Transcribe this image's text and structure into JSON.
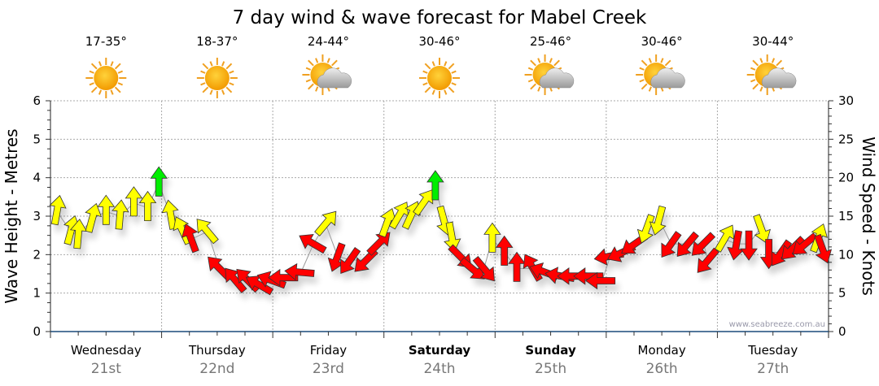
{
  "chart_data": {
    "type": "scatter",
    "title": "7 day wind & wave forecast for Mabel Creek",
    "ylabel_left": "Wave Height - Metres",
    "ylabel_right": "Wind Speed - Knots",
    "ylim_left": [
      0,
      6
    ],
    "ylim_right": [
      0,
      30
    ],
    "yticks_left": [
      "0",
      "1",
      "2",
      "3",
      "4",
      "5",
      "6"
    ],
    "yticks_right": [
      "0",
      "5",
      "10",
      "15",
      "20",
      "25",
      "30"
    ],
    "grid": true,
    "watermark": "www.seabreeze.com.au",
    "days": [
      {
        "name": "Wednesday",
        "date": "21st",
        "temp": "17-35°",
        "icon": "sun",
        "bold": false
      },
      {
        "name": "Thursday",
        "date": "22nd",
        "temp": "18-37°",
        "icon": "sun",
        "bold": false
      },
      {
        "name": "Friday",
        "date": "23rd",
        "temp": "24-44°",
        "icon": "partly-cloudy",
        "bold": false
      },
      {
        "name": "Saturday",
        "date": "24th",
        "temp": "30-46°",
        "icon": "sun",
        "bold": true
      },
      {
        "name": "Sunday",
        "date": "25th",
        "temp": "25-46°",
        "icon": "partly-cloudy",
        "bold": true
      },
      {
        "name": "Monday",
        "date": "26th",
        "temp": "30-46°",
        "icon": "partly-cloudy",
        "bold": false
      },
      {
        "name": "Tuesday",
        "date": "27th",
        "temp": "30-44°",
        "icon": "partly-cloudy",
        "bold": false
      }
    ],
    "colors": {
      "y": "#ffff00",
      "r": "#ff0000",
      "g": "#00ee00"
    },
    "wind_fields": [
      "hour",
      "knots",
      "pointing_deg",
      "color"
    ],
    "wind": [
      [
        1.4,
        15.6,
        10,
        "y"
      ],
      [
        4.4,
        13,
        15,
        "y"
      ],
      [
        6,
        12.5,
        5,
        "y"
      ],
      [
        9,
        14.6,
        15,
        "y"
      ],
      [
        12,
        15.6,
        0,
        "y"
      ],
      [
        15,
        15,
        5,
        "y"
      ],
      [
        18,
        16.7,
        0,
        "y"
      ],
      [
        21,
        16.1,
        0,
        "y"
      ],
      [
        23.4,
        19.3,
        0,
        "g"
      ],
      [
        26,
        15,
        350,
        "y"
      ],
      [
        28.6,
        13,
        335,
        "y"
      ],
      [
        30.4,
        12,
        340,
        "r"
      ],
      [
        33.9,
        13,
        320,
        "y"
      ],
      [
        36.5,
        8.2,
        315,
        "r"
      ],
      [
        40,
        6.6,
        320,
        "r"
      ],
      [
        42.7,
        6.6,
        315,
        "r"
      ],
      [
        45.3,
        6,
        300,
        "r"
      ],
      [
        48,
        6.6,
        290,
        "r"
      ],
      [
        50.6,
        7,
        270,
        "r"
      ],
      [
        54.1,
        7.7,
        275,
        "r"
      ],
      [
        56.8,
        11.4,
        300,
        "r"
      ],
      [
        59.4,
        14,
        40,
        "y"
      ],
      [
        62,
        9.8,
        200,
        "r"
      ],
      [
        64.7,
        9.3,
        215,
        "r"
      ],
      [
        68.2,
        9.3,
        225,
        "r"
      ],
      [
        70.8,
        11.4,
        45,
        "r"
      ],
      [
        72.6,
        14,
        20,
        "y"
      ],
      [
        75.2,
        15,
        30,
        "y"
      ],
      [
        77.8,
        15,
        25,
        "y"
      ],
      [
        80.5,
        16.7,
        35,
        "y"
      ],
      [
        83.1,
        18.8,
        0,
        "g"
      ],
      [
        84.9,
        14.6,
        165,
        "y"
      ],
      [
        86.6,
        12.5,
        170,
        "y"
      ],
      [
        88.4,
        9.8,
        135,
        "r"
      ],
      [
        91,
        8.2,
        130,
        "r"
      ],
      [
        93.6,
        8.2,
        140,
        "r"
      ],
      [
        95.4,
        12,
        0,
        "y"
      ],
      [
        98,
        10.3,
        0,
        "r"
      ],
      [
        100.7,
        8.2,
        0,
        "r"
      ],
      [
        104.2,
        8.2,
        330,
        "r"
      ],
      [
        106.8,
        7.7,
        290,
        "r"
      ],
      [
        110.3,
        7.2,
        280,
        "r"
      ],
      [
        113,
        7.2,
        270,
        "r"
      ],
      [
        116.5,
        7.2,
        270,
        "r"
      ],
      [
        119.1,
        6.6,
        270,
        "r"
      ],
      [
        120.9,
        9.8,
        260,
        "r"
      ],
      [
        123.5,
        10.3,
        245,
        "r"
      ],
      [
        126.2,
        11.4,
        235,
        "r"
      ],
      [
        128.8,
        13.5,
        200,
        "y"
      ],
      [
        131.4,
        14.6,
        195,
        "y"
      ],
      [
        134,
        11.4,
        215,
        "r"
      ],
      [
        137.6,
        11.4,
        220,
        "r"
      ],
      [
        141,
        11.4,
        225,
        "r"
      ],
      [
        142,
        9.3,
        220,
        "r"
      ],
      [
        145.5,
        12,
        30,
        "y"
      ],
      [
        148.1,
        11.4,
        190,
        "r"
      ],
      [
        150.8,
        11.4,
        180,
        "r"
      ],
      [
        153.4,
        13.5,
        160,
        "y"
      ],
      [
        155.1,
        10.3,
        180,
        "r"
      ],
      [
        157.8,
        10.3,
        215,
        "r"
      ],
      [
        160.4,
        10.9,
        225,
        "r"
      ],
      [
        163,
        11.4,
        230,
        "r"
      ],
      [
        165.7,
        12,
        20,
        "y"
      ],
      [
        166.6,
        10.9,
        160,
        "r"
      ]
    ]
  }
}
